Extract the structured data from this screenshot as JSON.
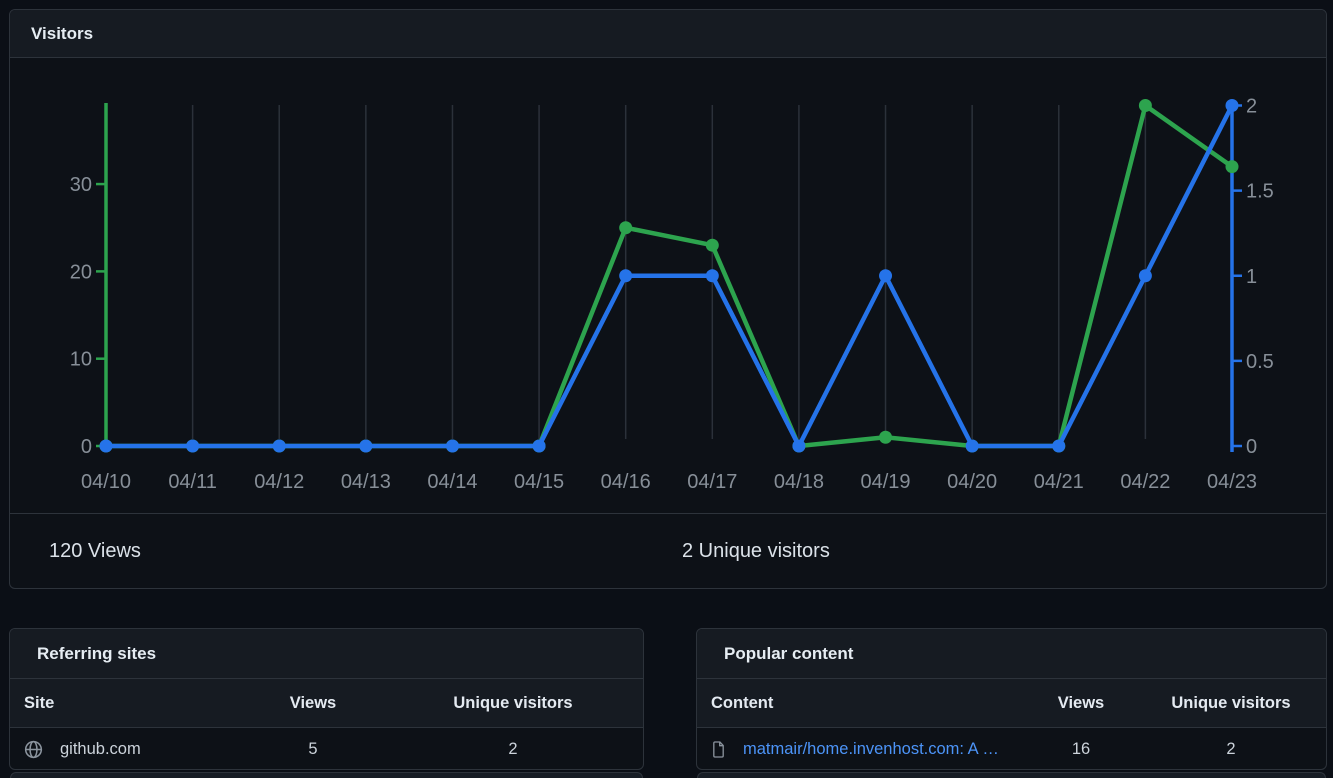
{
  "visitors_card": {
    "title": "Visitors",
    "summary": {
      "views": "120 Views",
      "unique_visitors": "2 Unique visitors"
    }
  },
  "chart_data": {
    "type": "line",
    "title": "Visitors",
    "x": [
      "04/10",
      "04/11",
      "04/12",
      "04/13",
      "04/14",
      "04/15",
      "04/16",
      "04/17",
      "04/18",
      "04/19",
      "04/20",
      "04/21",
      "04/22",
      "04/23"
    ],
    "series": [
      {
        "name": "views",
        "label": "Views",
        "axis": "left",
        "color": "#2da44e",
        "values": [
          0,
          0,
          0,
          0,
          0,
          0,
          25,
          23,
          0,
          1,
          0,
          0,
          39,
          32
        ]
      },
      {
        "name": "unique-visitors",
        "label": "Unique visitors",
        "axis": "right",
        "color": "#2573e9",
        "values": [
          0,
          0,
          0,
          0,
          0,
          0,
          1,
          1,
          0,
          1,
          0,
          0,
          1,
          2
        ]
      }
    ],
    "left_axis": {
      "ticks": [
        0,
        10,
        20,
        30
      ],
      "max": 39,
      "color": "#2da44e"
    },
    "right_axis": {
      "ticks": [
        0,
        0.5,
        1,
        1.5,
        2
      ],
      "max": 2,
      "color": "#2573e9"
    },
    "grid": true,
    "legend": "none",
    "gridline_color": "#2b313a",
    "tick_label_color": "#878f98"
  },
  "referring_sites": {
    "title": "Referring sites",
    "columns": [
      "Site",
      "Views",
      "Unique visitors"
    ],
    "rows": [
      {
        "icon": "globe-icon",
        "site": "github.com",
        "views": "5",
        "unique_visitors": "2"
      }
    ]
  },
  "popular_content": {
    "title": "Popular content",
    "columns": [
      "Content",
      "Views",
      "Unique visitors"
    ],
    "rows": [
      {
        "icon": "file-icon",
        "content": "matmair/home.invenhost.com: A …",
        "views": "16",
        "unique_visitors": "2"
      }
    ]
  },
  "colors": {
    "views_green": "#2da44e",
    "unique_blue": "#2573e9",
    "link_blue": "#4c94f8"
  }
}
